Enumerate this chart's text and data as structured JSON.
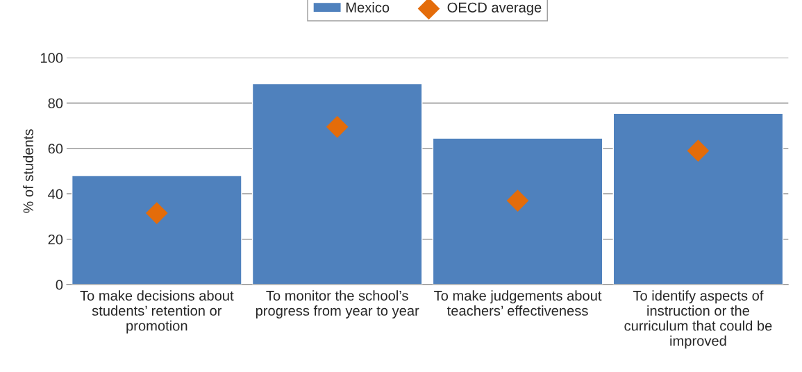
{
  "chart_data": {
    "type": "bar",
    "categories": [
      "To make decisions about students’ retention or promotion",
      "To monitor the school’s progress from year to year",
      "To make judgements about teachers’ effectiveness",
      "To identify aspects of instruction or the curriculum that could be improved"
    ],
    "series": [
      {
        "name": "Mexico",
        "color": "#4f81bd",
        "values": [
          48,
          88.5,
          64.5,
          75.5
        ]
      },
      {
        "name": "OECD average",
        "type": "scatter",
        "marker": "diamond",
        "color": "#e46c0a",
        "values": [
          31.5,
          69.5,
          37,
          59
        ]
      }
    ],
    "ylabel": "% of students",
    "ylim": [
      0,
      100
    ],
    "yticks": [
      0,
      20,
      40,
      60,
      80,
      100
    ],
    "grid": "y",
    "legend": "top"
  }
}
